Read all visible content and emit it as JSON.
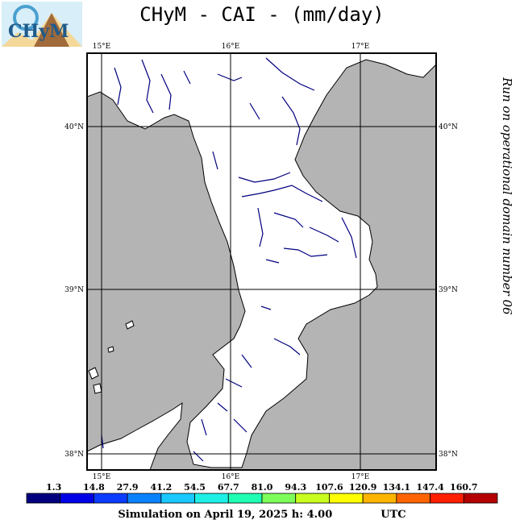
{
  "title": "CHyM - CAI - (mm/day)",
  "logo": {
    "text": "CHyM",
    "icon": "chym-mountain-logo"
  },
  "map": {
    "lon_labels": [
      "15°E",
      "16°E",
      "17°E"
    ],
    "lat_labels": [
      "40°N",
      "39°N",
      "38°N"
    ],
    "colors": {
      "sea": "#b4b4b4",
      "land": "#ffffff",
      "river": "#00007f",
      "grid": "#000000"
    }
  },
  "side_note": "Run on operational domain number 06",
  "legend": {
    "values": [
      "1.3",
      "14.8",
      "27.9",
      "41.2",
      "54.5",
      "67.7",
      "81.0",
      "94.3",
      "107.6",
      "120.9",
      "134.1",
      "147.4",
      "160.7"
    ],
    "colors": [
      "#00007f",
      "#0000e6",
      "#0a3cff",
      "#0a82ff",
      "#19c8ff",
      "#1ef0e6",
      "#1effb4",
      "#7dff5a",
      "#c8ff1e",
      "#ffff00",
      "#ffb400",
      "#ff6400",
      "#ff1e00",
      "#b40000"
    ]
  },
  "footer": {
    "simulation": "Simulation on April 19, 2025 h: 4.00",
    "utc": "UTC"
  }
}
